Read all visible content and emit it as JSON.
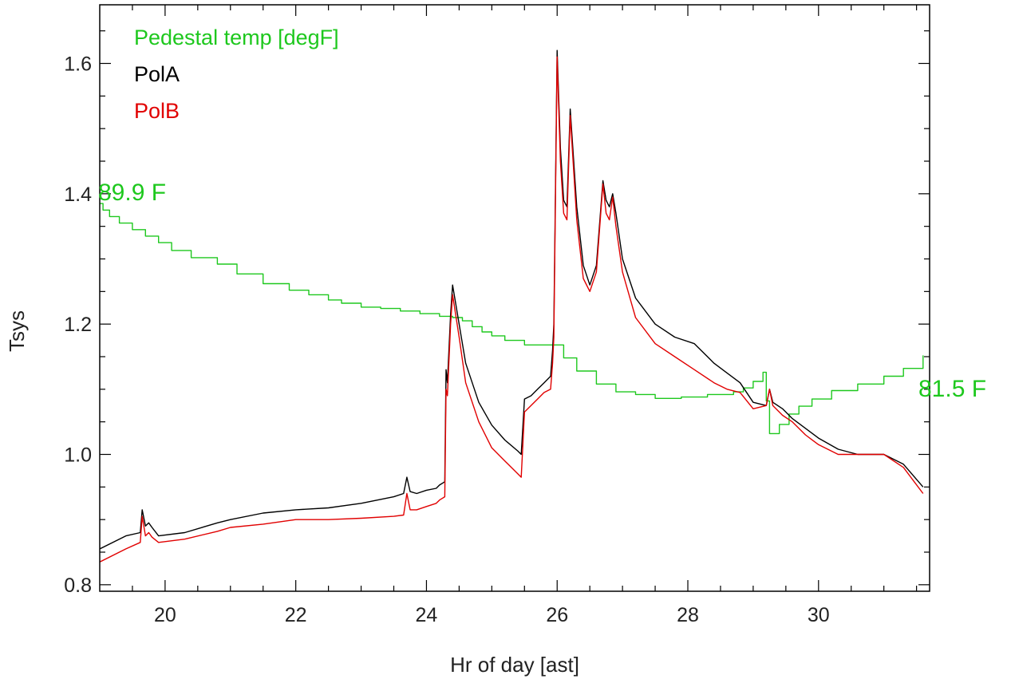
{
  "chart_data": {
    "type": "line",
    "xlabel": "Hr of day [ast]",
    "ylabel": "Tsys",
    "xlim": [
      19.0,
      31.7
    ],
    "ylim": [
      0.79,
      1.69
    ],
    "x_ticks": [
      20,
      22,
      24,
      26,
      28,
      30
    ],
    "x_tick_labels": [
      "20",
      "22",
      "24",
      "26",
      "28",
      "30"
    ],
    "y_ticks": [
      0.8,
      1.0,
      1.2,
      1.4,
      1.6
    ],
    "y_tick_labels": [
      "0.8",
      "1.0",
      "1.2",
      "1.4",
      "1.6"
    ],
    "grid": false,
    "legend_position": "top-left",
    "annotations": [
      {
        "text": "89.9 F",
        "x": 19.0,
        "y": 1.41,
        "color": "#1ec81e"
      },
      {
        "text": "81.5 F",
        "x": 31.45,
        "y": 1.1,
        "color": "#1ec81e"
      }
    ],
    "series": [
      {
        "name": "Pedestal temp [degF]",
        "color": "#1ec81e",
        "step": true,
        "x": [
          19.0,
          19.05,
          19.15,
          19.3,
          19.5,
          19.7,
          19.9,
          20.1,
          20.4,
          20.8,
          21.1,
          21.5,
          21.9,
          22.2,
          22.5,
          22.7,
          23.0,
          23.3,
          23.6,
          23.9,
          24.2,
          24.4,
          24.55,
          24.7,
          24.85,
          25.0,
          25.2,
          25.5,
          25.8,
          25.95,
          26.1,
          26.3,
          26.6,
          26.9,
          27.2,
          27.5,
          27.9,
          28.3,
          28.7,
          28.85,
          29.0,
          29.15,
          29.2,
          29.25,
          29.4,
          29.55,
          29.7,
          29.9,
          30.2,
          30.6,
          31.0,
          31.3,
          31.6
        ],
        "y": [
          1.385,
          1.375,
          1.365,
          1.355,
          1.345,
          1.335,
          1.325,
          1.313,
          1.302,
          1.292,
          1.277,
          1.262,
          1.252,
          1.245,
          1.237,
          1.232,
          1.226,
          1.224,
          1.22,
          1.216,
          1.212,
          1.21,
          1.205,
          1.196,
          1.188,
          1.182,
          1.175,
          1.168,
          1.168,
          1.168,
          1.148,
          1.128,
          1.108,
          1.096,
          1.092,
          1.086,
          1.088,
          1.092,
          1.096,
          1.102,
          1.112,
          1.126,
          1.082,
          1.032,
          1.046,
          1.062,
          1.074,
          1.085,
          1.098,
          1.108,
          1.12,
          1.132,
          1.152
        ]
      },
      {
        "name": "PolA",
        "color": "#000000",
        "step": false,
        "x": [
          19.0,
          19.4,
          19.62,
          19.65,
          19.7,
          19.75,
          19.8,
          19.9,
          20.3,
          20.8,
          21.0,
          21.5,
          22.0,
          22.5,
          23.0,
          23.5,
          23.65,
          23.7,
          23.75,
          23.85,
          24.0,
          24.15,
          24.2,
          24.28,
          24.3,
          24.32,
          24.37,
          24.4,
          24.5,
          24.6,
          24.8,
          25.0,
          25.2,
          25.4,
          25.45,
          25.5,
          25.6,
          25.7,
          25.8,
          25.9,
          25.93,
          25.95,
          26.0,
          26.05,
          26.1,
          26.15,
          26.2,
          26.3,
          26.4,
          26.5,
          26.6,
          26.7,
          26.75,
          26.8,
          26.85,
          26.9,
          27.0,
          27.2,
          27.5,
          27.8,
          28.1,
          28.4,
          28.6,
          28.8,
          29.0,
          29.2,
          29.25,
          29.3,
          29.45,
          29.6,
          29.8,
          30.0,
          30.3,
          30.6,
          31.0,
          31.3,
          31.6
        ],
        "y": [
          0.855,
          0.875,
          0.88,
          0.915,
          0.89,
          0.895,
          0.888,
          0.875,
          0.88,
          0.895,
          0.9,
          0.91,
          0.915,
          0.918,
          0.925,
          0.935,
          0.94,
          0.965,
          0.943,
          0.94,
          0.945,
          0.948,
          0.953,
          0.958,
          1.13,
          1.11,
          1.215,
          1.26,
          1.2,
          1.14,
          1.08,
          1.045,
          1.022,
          1.005,
          1.0,
          1.085,
          1.09,
          1.1,
          1.11,
          1.12,
          1.16,
          1.2,
          1.62,
          1.47,
          1.39,
          1.38,
          1.53,
          1.38,
          1.29,
          1.26,
          1.29,
          1.42,
          1.39,
          1.38,
          1.4,
          1.37,
          1.3,
          1.24,
          1.2,
          1.18,
          1.17,
          1.14,
          1.125,
          1.11,
          1.08,
          1.075,
          1.1,
          1.08,
          1.07,
          1.055,
          1.04,
          1.025,
          1.008,
          1.0,
          1.0,
          0.985,
          0.95
        ]
      },
      {
        "name": "PolB",
        "color": "#e10000",
        "step": false,
        "x": [
          19.0,
          19.4,
          19.62,
          19.65,
          19.7,
          19.75,
          19.8,
          19.9,
          20.3,
          20.8,
          21.0,
          21.5,
          22.0,
          22.5,
          23.0,
          23.5,
          23.65,
          23.7,
          23.75,
          23.85,
          24.0,
          24.15,
          24.2,
          24.28,
          24.3,
          24.32,
          24.37,
          24.4,
          24.5,
          24.6,
          24.8,
          25.0,
          25.2,
          25.4,
          25.45,
          25.5,
          25.6,
          25.7,
          25.8,
          25.9,
          25.93,
          25.95,
          26.0,
          26.05,
          26.1,
          26.15,
          26.2,
          26.3,
          26.4,
          26.5,
          26.6,
          26.7,
          26.75,
          26.8,
          26.85,
          26.9,
          27.0,
          27.2,
          27.5,
          27.8,
          28.1,
          28.4,
          28.6,
          28.8,
          29.0,
          29.2,
          29.25,
          29.3,
          29.45,
          29.6,
          29.8,
          30.0,
          30.3,
          30.6,
          31.0,
          31.3,
          31.6
        ],
        "y": [
          0.835,
          0.855,
          0.865,
          0.905,
          0.875,
          0.88,
          0.873,
          0.865,
          0.87,
          0.882,
          0.888,
          0.893,
          0.9,
          0.9,
          0.902,
          0.905,
          0.907,
          0.94,
          0.915,
          0.915,
          0.92,
          0.925,
          0.93,
          0.935,
          1.1,
          1.09,
          1.2,
          1.245,
          1.18,
          1.11,
          1.05,
          1.01,
          0.99,
          0.97,
          0.965,
          1.065,
          1.075,
          1.085,
          1.095,
          1.1,
          1.14,
          1.18,
          1.61,
          1.45,
          1.37,
          1.36,
          1.52,
          1.36,
          1.27,
          1.25,
          1.28,
          1.415,
          1.37,
          1.36,
          1.395,
          1.35,
          1.28,
          1.21,
          1.17,
          1.15,
          1.13,
          1.11,
          1.1,
          1.095,
          1.07,
          1.075,
          1.1,
          1.075,
          1.06,
          1.05,
          1.03,
          1.015,
          1.0,
          1.0,
          1.0,
          0.98,
          0.94
        ]
      }
    ]
  }
}
